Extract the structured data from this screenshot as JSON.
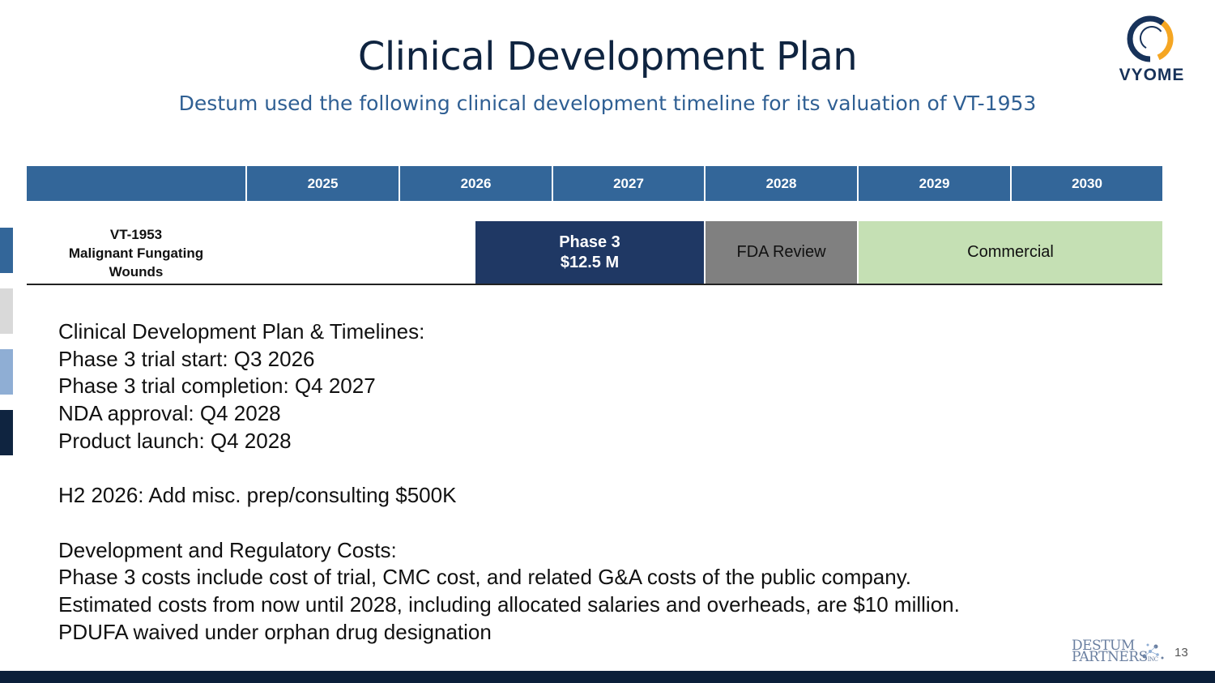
{
  "slide": {
    "title": "Clinical Development Plan",
    "subtitle": "Destum used the following clinical development timeline for its valuation of VT-1953",
    "page_number": "13"
  },
  "brand": {
    "logo_text": "VYOME",
    "footer_logo_line1": "DESTUM",
    "footer_logo_line2": "PARTNERS",
    "footer_logo_inc": "INC"
  },
  "colors": {
    "header_blue": "#336699",
    "phase3_navy": "#1f3864",
    "fda_gray": "#808080",
    "commercial_green": "#c5e0b4",
    "title_navy": "#0f2440",
    "subtitle_blue": "#2f5f93",
    "footer_navy": "#0b1f3a"
  },
  "timeline": {
    "years": [
      "2025",
      "2026",
      "2027",
      "2028",
      "2029",
      "2030"
    ],
    "row_label": [
      "VT-1953",
      "Malignant Fungating",
      "Wounds"
    ],
    "phase3_line1": "Phase 3",
    "phase3_line2": "$12.5 M",
    "fda_review": "FDA Review",
    "commercial": "Commercial"
  },
  "body_lines": [
    "Clinical Development Plan & Timelines:",
    "Phase 3 trial start: Q3 2026",
    "Phase 3 trial completion: Q4 2027",
    "NDA approval: Q4 2028",
    "Product launch: Q4 2028",
    "",
    "H2 2026: Add misc. prep/consulting $500K",
    "",
    "Development and Regulatory Costs:",
    "Phase 3 costs include cost of trial, CMC cost, and related G&A costs of the public company.",
    "Estimated costs from now until 2028, including allocated salaries and overheads, are $10 million.",
    "PDUFA waived under orphan drug designation"
  ]
}
